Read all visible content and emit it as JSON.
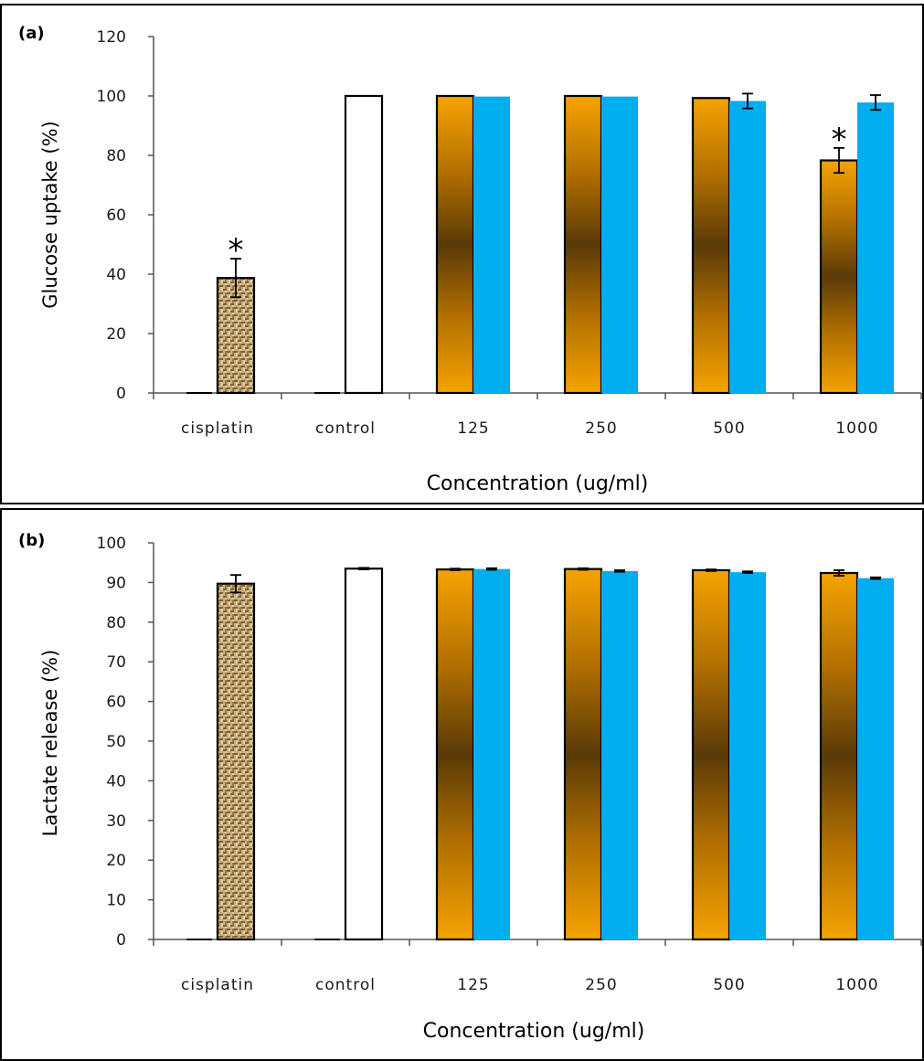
{
  "chart_data": [
    {
      "type": "bar",
      "panel_label": "(a)",
      "categories": [
        "cisplatin",
        "control",
        "125",
        "250",
        "500",
        "1000"
      ],
      "ylabel": "Glucose uptake (%)",
      "xlabel": "Concentration (ug/ml)",
      "ylim": [
        0,
        120
      ],
      "yticks": [
        0,
        20,
        40,
        60,
        80,
        100,
        120
      ],
      "grid": false,
      "series": [
        {
          "role": "first",
          "values": [
            0,
            0,
            100,
            100,
            99.3,
            78.3
          ],
          "errors": [
            0,
            0,
            0,
            0,
            0,
            4.2
          ],
          "color": "#f2a200"
        },
        {
          "role": "second",
          "values": [
            38.7,
            100,
            99.8,
            99.8,
            98.3,
            97.8
          ],
          "errors": [
            6.5,
            0,
            0,
            0,
            2.5,
            2.5
          ],
          "color": "#00aeef"
        }
      ],
      "annotations": [
        {
          "text": "*",
          "category": "cisplatin",
          "series": 1
        },
        {
          "text": "*",
          "category": "1000",
          "series": 0
        }
      ]
    },
    {
      "type": "bar",
      "panel_label": "(b)",
      "categories": [
        "cisplatin",
        "control",
        "125",
        "250",
        "500",
        "1000"
      ],
      "ylabel": "Lactate release (%)",
      "xlabel": "Concentration (ug/ml)",
      "ylim": [
        0,
        100
      ],
      "yticks": [
        0,
        10,
        20,
        30,
        40,
        50,
        60,
        70,
        80,
        90,
        100
      ],
      "grid": false,
      "series": [
        {
          "role": "first",
          "values": [
            0,
            0,
            93.3,
            93.4,
            93.1,
            92.4
          ],
          "errors": [
            0,
            0,
            0.2,
            0.2,
            0.2,
            0.7
          ],
          "color": "#f2a200"
        },
        {
          "role": "second",
          "values": [
            89.7,
            93.5,
            93.4,
            92.9,
            92.6,
            91.1
          ],
          "errors": [
            2.2,
            0.2,
            0.2,
            0.2,
            0.2,
            0.2
          ],
          "color": "#00aeef"
        }
      ],
      "annotations": []
    }
  ]
}
